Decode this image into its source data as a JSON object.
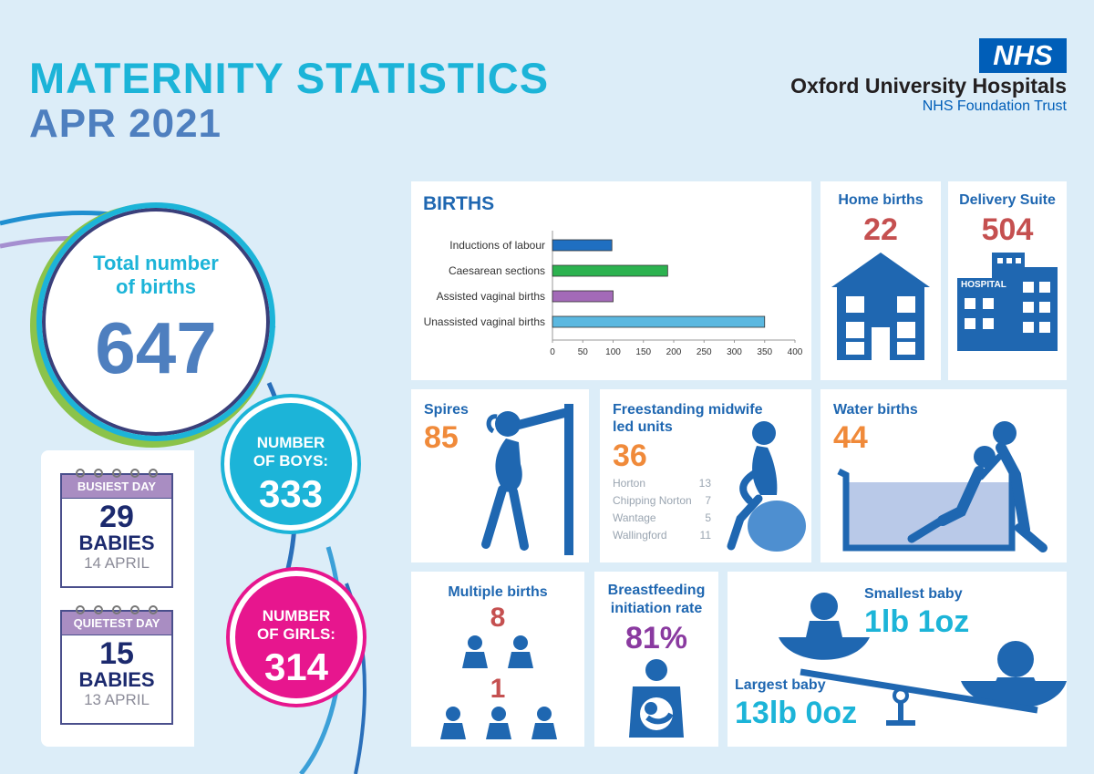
{
  "header": {
    "title": "MATERNITY STATISTICS",
    "subtitle": "APR 2021",
    "nhs_badge": "NHS",
    "org_name": "Oxford University Hospitals",
    "org_sub": "NHS Foundation Trust"
  },
  "totals": {
    "total_label_1": "Total number",
    "total_label_2": "of births",
    "total_value": "647",
    "boys_label_1": "NUMBER",
    "boys_label_2": "OF BOYS:",
    "boys_value": "333",
    "girls_label_1": "NUMBER",
    "girls_label_2": "OF GIRLS:",
    "girls_value": "314"
  },
  "calendars": {
    "busiest": {
      "head": "BUSIEST DAY",
      "num": "29",
      "word": "BABIES",
      "date": "14 APRIL"
    },
    "quietest": {
      "head": "QUIETEST DAY",
      "num": "15",
      "word": "BABIES",
      "date": "13 APRIL"
    }
  },
  "home_births": {
    "title": "Home births",
    "value": "22"
  },
  "delivery_suite": {
    "title": "Delivery Suite",
    "value": "504",
    "sign": "HOSPITAL"
  },
  "spires": {
    "title": "Spires",
    "value": "85"
  },
  "freestanding": {
    "title_1": "Freestanding midwife",
    "title_2": "led units",
    "value": "36",
    "units": [
      {
        "name": "Horton",
        "count": "13"
      },
      {
        "name": "Chipping Norton",
        "count": "7"
      },
      {
        "name": "Wantage",
        "count": "5"
      },
      {
        "name": "Wallingford",
        "count": "11"
      }
    ]
  },
  "water_births": {
    "title": "Water births",
    "value": "44"
  },
  "multiple_births": {
    "title": "Multiple births",
    "twins": "8",
    "triplets": "1"
  },
  "breastfeeding": {
    "title_1": "Breastfeeding",
    "title_2": "initiation rate",
    "value": "81%"
  },
  "baby_size": {
    "smallest_title": "Smallest baby",
    "smallest_value": "1lb 1oz",
    "largest_title": "Largest baby",
    "largest_value": "13lb 0oz"
  },
  "chart_data": {
    "type": "bar",
    "orientation": "horizontal",
    "title": "BIRTHS",
    "categories": [
      "Inductions of labour",
      "Caesarean sections",
      "Assisted vaginal births",
      "Unassisted vaginal births"
    ],
    "values": [
      98,
      190,
      100,
      350
    ],
    "colors": [
      "#1f6fc1",
      "#2cb24f",
      "#a36ab8",
      "#5bb8e0"
    ],
    "xlim": [
      0,
      400
    ],
    "xticks": [
      "0",
      "50",
      "100",
      "150",
      "200",
      "250",
      "300",
      "350",
      "400"
    ],
    "grid": false
  }
}
